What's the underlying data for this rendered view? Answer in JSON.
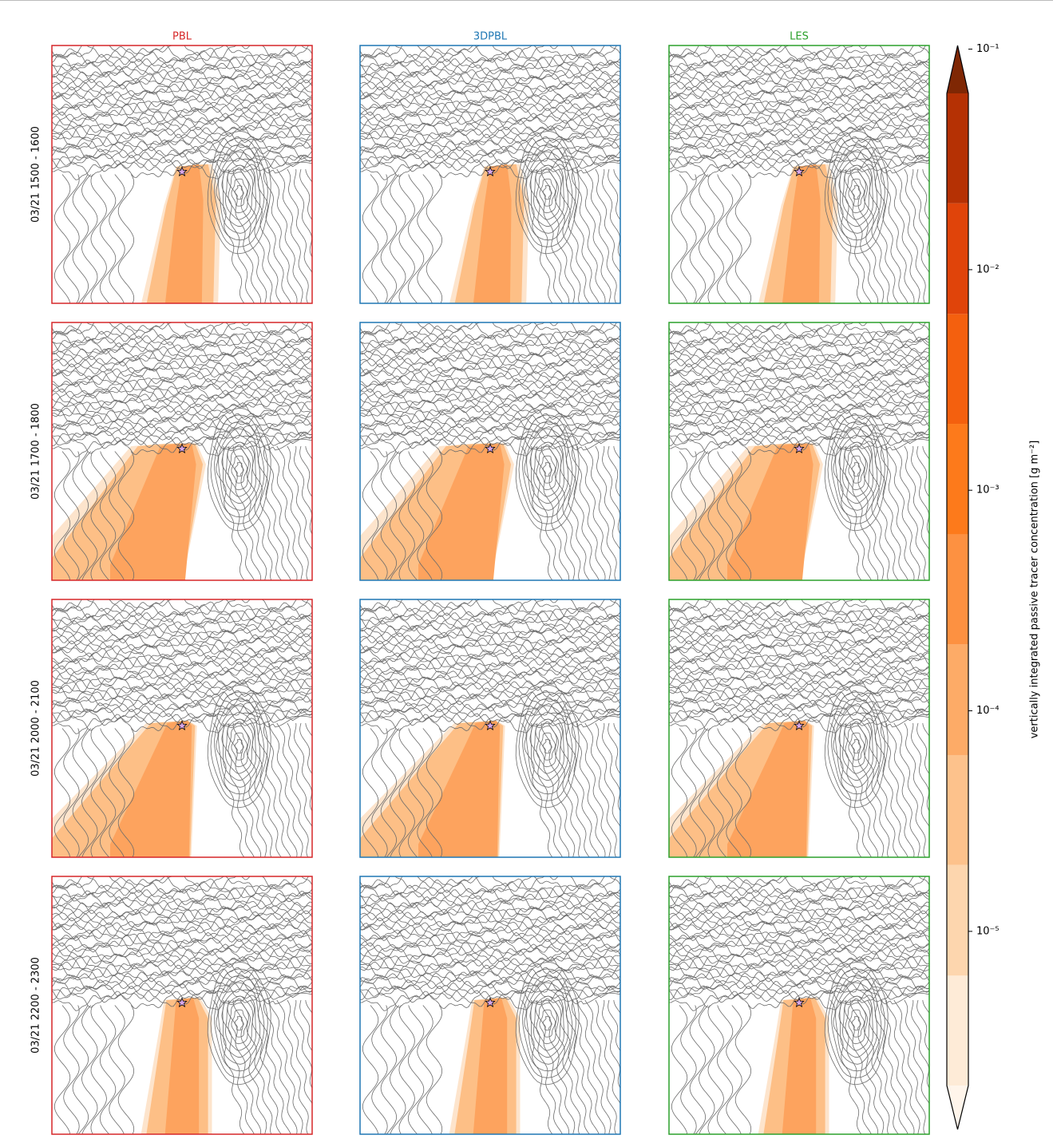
{
  "chart_data": {
    "type": "contour-map-grid",
    "column_titles": [
      "PBL",
      "3DPBL",
      "LES"
    ],
    "column_colors": [
      "#d62728",
      "#1f77b4",
      "#2ca02c"
    ],
    "row_titles": [
      "03/21 1500 - 1600",
      "03/21 1700 - 1800",
      "03/21 2000 - 2100",
      "03/21 2200 - 2300"
    ],
    "colorbar": {
      "label": "vertically integrated passive tracer concentration [g m⁻²]",
      "scale": "log",
      "ylim": [
        2e-06,
        0.063
      ],
      "yticks": [
        {
          "value": 1e-05,
          "label": "10⁻⁵"
        },
        {
          "value": 0.0001,
          "label": "10⁻⁴"
        },
        {
          "value": 0.001,
          "label": "10⁻³"
        },
        {
          "value": 0.01,
          "label": "10⁻²"
        },
        {
          "value": 0.1,
          "label": "10⁻¹"
        }
      ],
      "levels": [
        2e-06,
        6.3e-06,
        2e-05,
        6.3e-05,
        0.0002,
        0.00063,
        0.002,
        0.0063,
        0.02,
        0.063
      ],
      "colors": [
        "#feebd7",
        "#fdd6ae",
        "#fdc28c",
        "#fdab67",
        "#fd9141",
        "#fd7a1b",
        "#f4600e",
        "#e0440a",
        "#b53104"
      ],
      "under_color": "#fff5eb",
      "over_color": "#7f2704"
    }
  }
}
